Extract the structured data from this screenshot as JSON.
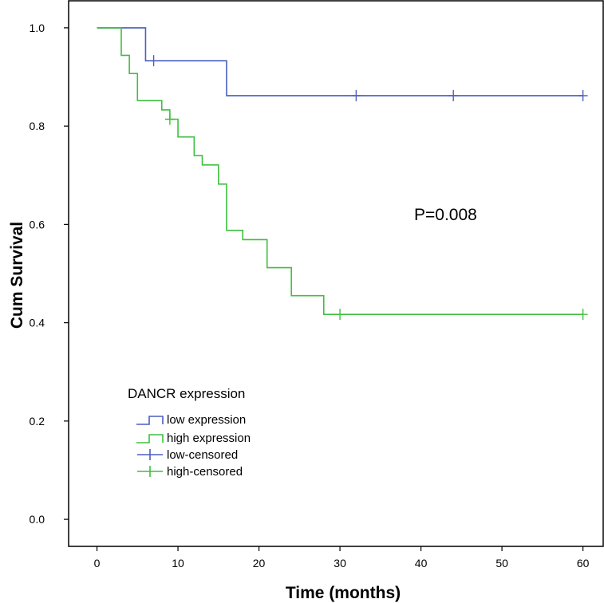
{
  "chart_data": {
    "type": "line",
    "title": "",
    "xlabel": "Time (months)",
    "ylabel": "Cum Survival",
    "xlim": [
      -3.5,
      62.5
    ],
    "ylim": [
      -0.055,
      1.055
    ],
    "xticks": [
      0,
      10,
      20,
      30,
      40,
      50,
      60
    ],
    "xtick_labels": [
      "0",
      "10",
      "20",
      "30",
      "40",
      "50",
      "60"
    ],
    "yticks": [
      0.0,
      0.2,
      0.4,
      0.6,
      0.8,
      1.0
    ],
    "ytick_labels": [
      "0.0",
      "0.2",
      "0.4",
      "0.6",
      "0.8",
      "1.0"
    ],
    "grid": false,
    "annotation": "P=0.008",
    "legend": {
      "title": "DANCR expression",
      "position": "lower-left",
      "entries": [
        {
          "label": "low expression",
          "marker": "step",
          "color": "#4a5fbf"
        },
        {
          "label": "high expression",
          "marker": "step",
          "color": "#3fbf3f"
        },
        {
          "label": "low-censored",
          "marker": "plus",
          "color": "#4a5fbf"
        },
        {
          "label": "high-censored",
          "marker": "plus",
          "color": "#3fbf3f"
        }
      ]
    },
    "series": [
      {
        "name": "low expression",
        "color": "#4a5fbf",
        "step_x": [
          0,
          6,
          16,
          60
        ],
        "step_y": [
          1.0,
          0.933,
          0.862,
          0.862
        ],
        "censored": [
          [
            7,
            0.933
          ],
          [
            32,
            0.862
          ],
          [
            44,
            0.862
          ],
          [
            60,
            0.862
          ]
        ]
      },
      {
        "name": "high expression",
        "color": "#3fbf3f",
        "step_x": [
          0,
          3,
          4,
          5,
          8,
          9,
          10,
          12,
          13,
          15,
          16,
          18,
          21,
          24,
          28,
          60
        ],
        "step_y": [
          1.0,
          0.944,
          0.907,
          0.852,
          0.833,
          0.814,
          0.778,
          0.74,
          0.721,
          0.682,
          0.588,
          0.569,
          0.512,
          0.455,
          0.417,
          0.417
        ],
        "censored": [
          [
            9,
            0.814
          ],
          [
            30,
            0.417
          ],
          [
            60,
            0.417
          ]
        ]
      }
    ]
  }
}
